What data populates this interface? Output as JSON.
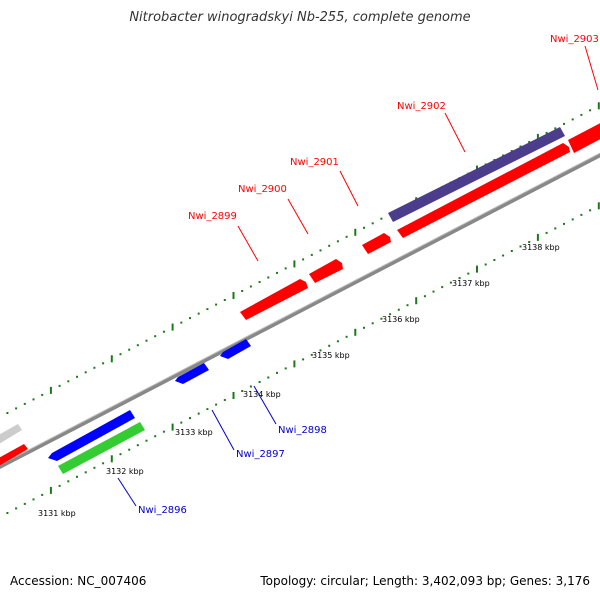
{
  "title": "Nitrobacter winogradskyi Nb-255, complete genome",
  "footer": {
    "accession": "Accession: NC_007406",
    "summary": "Topology: circular; Length: 3,402,093 bp; Genes: 3,176"
  },
  "colors": {
    "forward_gene": "#ff0000",
    "reverse_gene": "#0000ff",
    "purple_feature": "#4b3c8c",
    "green_feature": "#33cc33",
    "gray_feature": "#cccccc",
    "backbone": "#808080",
    "tick_major": "#1a7a1a",
    "tick_minor": "#1a7a1a",
    "label_forward": "#ff0000",
    "label_reverse": "#0000cc"
  },
  "ruler_labels": [
    {
      "label": "3131 kbp"
    },
    {
      "label": "3132 kbp"
    },
    {
      "label": "3133 kbp"
    },
    {
      "label": "3134 kbp"
    },
    {
      "label": "3135 kbp"
    },
    {
      "label": "3136 kbp"
    },
    {
      "label": "3137 kbp"
    },
    {
      "label": "3138 kbp"
    }
  ],
  "genes": [
    {
      "name": "Nwi_2896",
      "strand": "reverse"
    },
    {
      "name": "Nwi_2897",
      "strand": "reverse"
    },
    {
      "name": "Nwi_2898",
      "strand": "reverse"
    },
    {
      "name": "Nwi_2899",
      "strand": "forward"
    },
    {
      "name": "Nwi_2900",
      "strand": "forward"
    },
    {
      "name": "Nwi_2901",
      "strand": "forward"
    },
    {
      "name": "Nwi_2902",
      "strand": "forward"
    },
    {
      "name": "Nwi_2903",
      "strand": "forward"
    }
  ]
}
